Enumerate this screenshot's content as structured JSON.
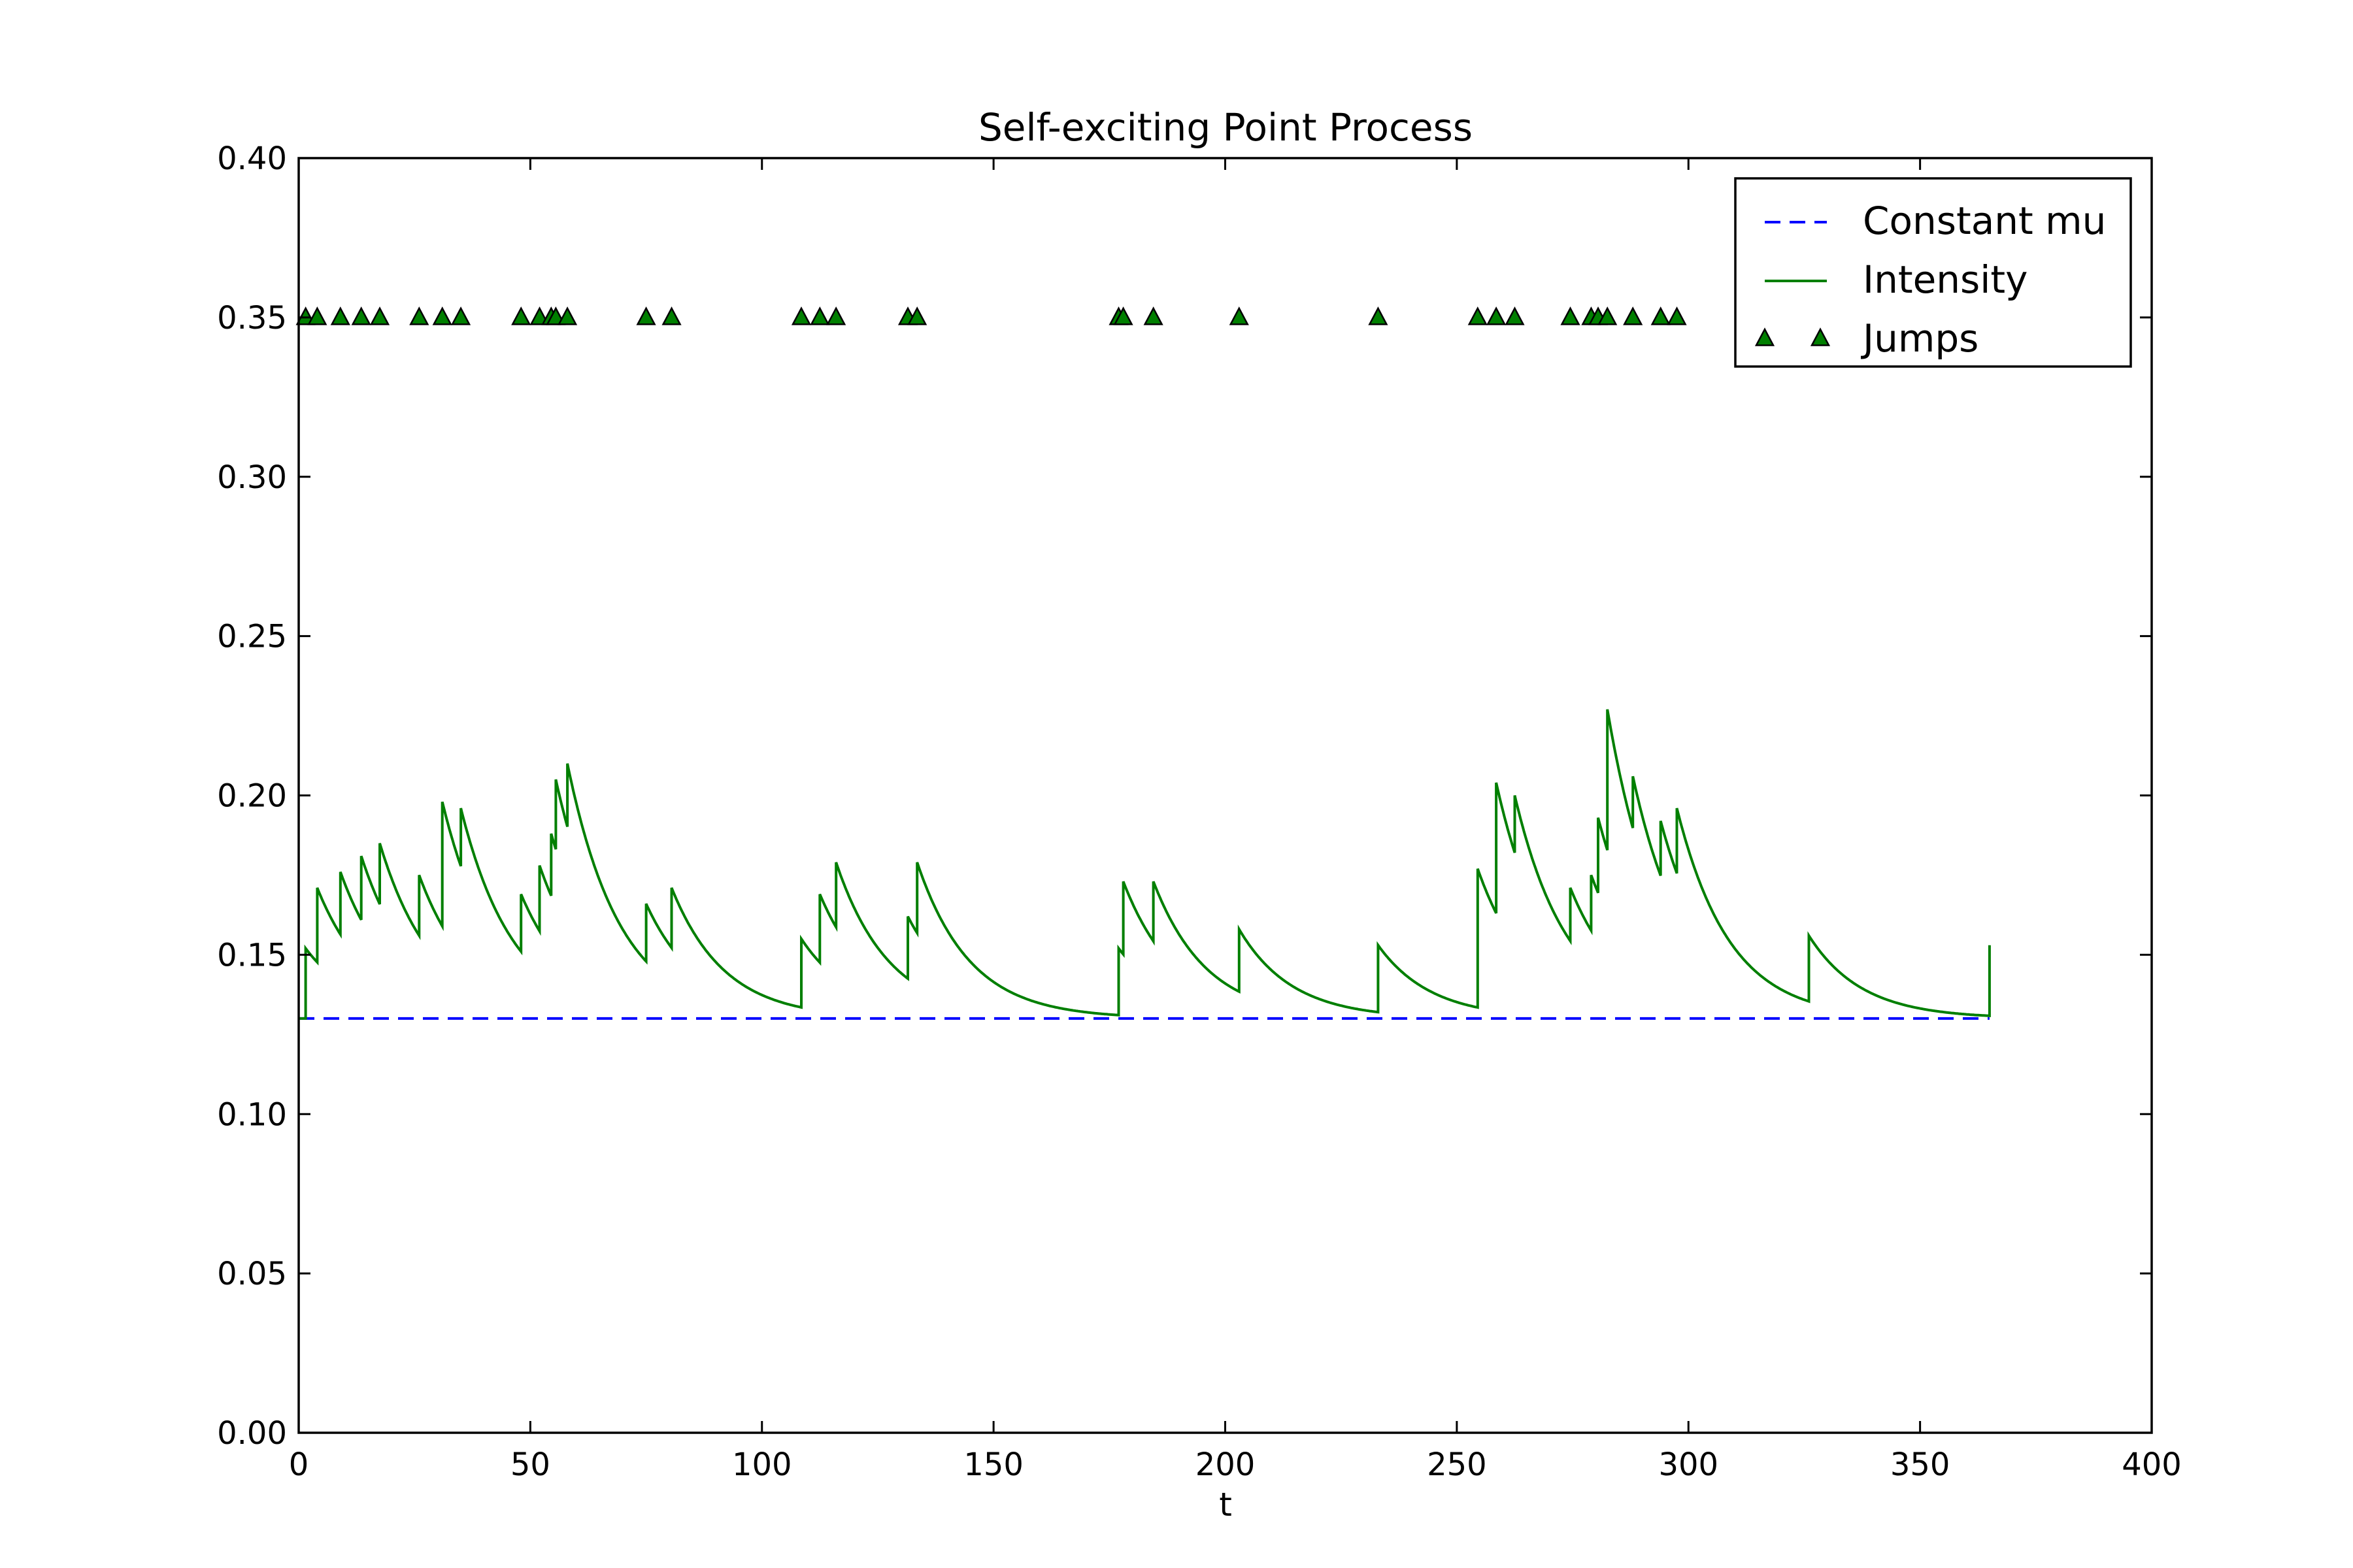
{
  "chart_data": {
    "type": "line",
    "title": "Self-exciting Point Process",
    "xlabel": "t",
    "ylabel": "",
    "xlim": [
      0,
      400
    ],
    "ylim": [
      0,
      0.4
    ],
    "xticks": [
      0,
      50,
      100,
      150,
      200,
      250,
      300,
      350,
      400
    ],
    "yticks": [
      0.0,
      0.05,
      0.1,
      0.15,
      0.2,
      0.25,
      0.3,
      0.35,
      0.4
    ],
    "xtick_labels": [
      "0",
      "50",
      "100",
      "150",
      "200",
      "250",
      "300",
      "350",
      "400"
    ],
    "ytick_labels": [
      "0.00",
      "0.05",
      "0.10",
      "0.15",
      "0.20",
      "0.25",
      "0.30",
      "0.35",
      "0.40"
    ],
    "grid": false,
    "legend": "top-right",
    "mu": 0.13,
    "t_end": 365,
    "decay": 0.088,
    "jump_marker_y": 0.35,
    "series": [
      {
        "name": "Constant mu",
        "style": "dashed",
        "color": "#0000ff",
        "values": [
          [
            0,
            0.13
          ],
          [
            365,
            0.13
          ]
        ]
      },
      {
        "name": "Intensity",
        "style": "solid",
        "color": "#007f00",
        "peaks": [
          [
            1.5,
            0.152
          ],
          [
            4,
            0.171
          ],
          [
            9,
            0.176
          ],
          [
            13.5,
            0.181
          ],
          [
            17.5,
            0.185
          ],
          [
            26,
            0.175
          ],
          [
            31,
            0.198
          ],
          [
            35,
            0.196
          ],
          [
            48,
            0.169
          ],
          [
            52,
            0.178
          ],
          [
            54.5,
            0.188
          ],
          [
            55.5,
            0.205
          ],
          [
            58,
            0.21
          ],
          [
            75,
            0.166
          ],
          [
            80.5,
            0.171
          ],
          [
            108.5,
            0.155
          ],
          [
            112.5,
            0.169
          ],
          [
            116,
            0.179
          ],
          [
            131.5,
            0.162
          ],
          [
            133.5,
            0.179
          ],
          [
            177,
            0.152
          ],
          [
            178,
            0.173
          ],
          [
            184.5,
            0.173
          ],
          [
            203,
            0.158
          ],
          [
            233,
            0.153
          ],
          [
            254.5,
            0.177
          ],
          [
            258.5,
            0.204
          ],
          [
            262.5,
            0.2
          ],
          [
            274.5,
            0.171
          ],
          [
            279,
            0.175
          ],
          [
            280.5,
            0.193
          ],
          [
            282.5,
            0.227
          ],
          [
            288,
            0.206
          ],
          [
            294,
            0.192
          ],
          [
            297.5,
            0.196
          ],
          [
            326,
            0.156
          ],
          [
            365,
            0.153
          ]
        ]
      },
      {
        "name": "Jumps",
        "style": "triangle-markers",
        "color": "#007f00",
        "x": [
          1.5,
          4,
          9,
          13.5,
          17.5,
          26,
          31,
          35,
          48,
          52,
          54.5,
          55.5,
          58,
          75,
          80.5,
          108.5,
          112.5,
          116,
          131.5,
          133.5,
          177,
          178,
          184.5,
          203,
          233,
          254.5,
          258.5,
          262.5,
          274.5,
          279,
          280.5,
          282.5,
          288,
          294,
          297.5
        ]
      }
    ]
  }
}
